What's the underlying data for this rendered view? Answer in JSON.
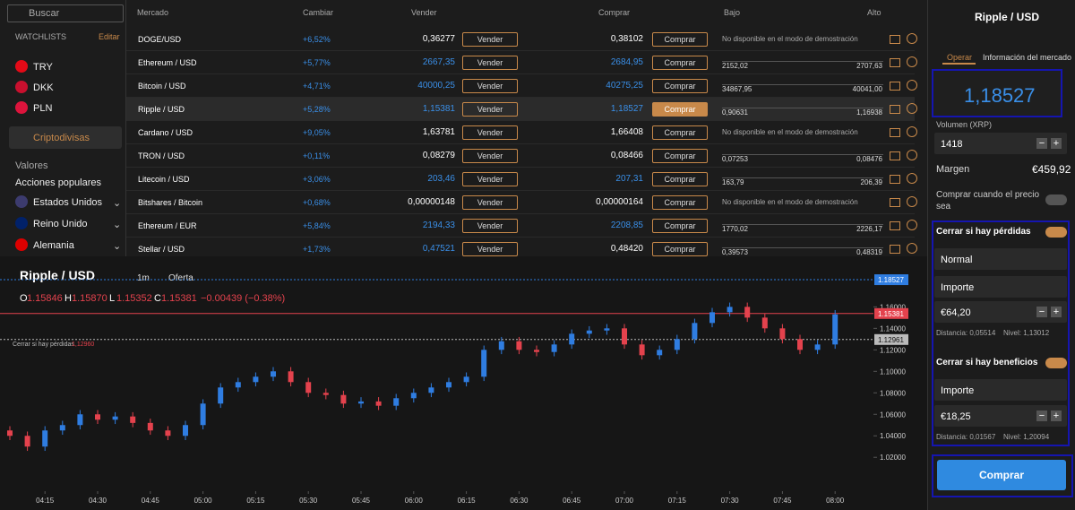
{
  "sidebar": {
    "search": "Buscar",
    "watchlists": "WATCHLISTS",
    "edit": "Editar",
    "currencies": [
      "TRY",
      "DKK",
      "PLN"
    ],
    "crypto": "Criptodivisas",
    "stocks": "Valores",
    "popular": "Acciones populares",
    "countries": [
      "Estados Unidos",
      "Reino Unido",
      "Alemania"
    ]
  },
  "table": {
    "headers": [
      "Mercado",
      "Cambiar",
      "Vender",
      "Comprar",
      "Bajo",
      "Alto"
    ],
    "sell_button": "Vender",
    "buy_button": "Comprar",
    "rows": [
      {
        "market": "DOGE/USD",
        "change": "+6,52%",
        "sell": "0,36277",
        "buy": "0,38102",
        "note": "No disponible en el modo de demostración"
      },
      {
        "market": "Ethereum / USD",
        "change": "+5,77%",
        "sell": "2667,35",
        "buy": "2684,95",
        "low": "2152,02",
        "high": "2707,63"
      },
      {
        "market": "Bitcoin / USD",
        "change": "+4,71%",
        "sell": "40000,25",
        "buy": "40275,25",
        "low": "34867,95",
        "high": "40041,00"
      },
      {
        "market": "Ripple / USD",
        "change": "+5,28%",
        "sell": "1,15381",
        "buy": "1,18527",
        "low": "0,90631",
        "high": "1,16938"
      },
      {
        "market": "Cardano / USD",
        "change": "+9,05%",
        "sell": "1,63781",
        "buy": "1,66408",
        "note": "No disponible en el modo de demostración"
      },
      {
        "market": "TRON / USD",
        "change": "+0,11%",
        "sell": "0,08279",
        "buy": "0,08466",
        "low": "0,07253",
        "high": "0,08476"
      },
      {
        "market": "Litecoin / USD",
        "change": "+3,06%",
        "sell": "203,46",
        "buy": "207,31",
        "low": "163,79",
        "high": "206,39"
      },
      {
        "market": "Bitshares / Bitcoin",
        "change": "+0,68%",
        "sell": "0,00000148",
        "buy": "0,00000164",
        "note": "No disponible en el modo de demostración"
      },
      {
        "market": "Ethereum / EUR",
        "change": "+5,84%",
        "sell": "2194,33",
        "buy": "2208,85",
        "low": "1770,02",
        "high": "2226,17"
      },
      {
        "market": "Stellar / USD",
        "change": "+1,73%",
        "sell": "0,47521",
        "buy": "0,48420",
        "low": "0,39573",
        "high": "0,48319"
      }
    ]
  },
  "chart_data": {
    "type": "candlestick",
    "title": "Ripple / USD",
    "interval": "1m",
    "price_type": "Oferta",
    "ohlc": [
      {
        "k": "O",
        "v": "1.15846"
      },
      {
        "k": "H",
        "v": "1.15870"
      },
      {
        "k": "L",
        "v": "1.15352"
      },
      {
        "k": "C",
        "v": "1.15381"
      }
    ],
    "change": "−0.00439 (−0.38%)",
    "up_color": "#2f7de1",
    "down_color": "#e4424d",
    "categories": [
      null,
      null,
      "04:15",
      null,
      null,
      "04:30",
      null,
      null,
      "04:45",
      null,
      null,
      "05:00",
      null,
      null,
      "05:15",
      null,
      null,
      "05:30",
      null,
      null,
      "05:45",
      null,
      null,
      "06:00",
      null,
      null,
      "06:15",
      null,
      null,
      "06:30",
      null,
      null,
      "06:45",
      null,
      null,
      "07:00",
      null,
      null,
      "07:15",
      null,
      null,
      "07:30",
      null,
      null,
      "07:45",
      null,
      null,
      "08:00"
    ],
    "candles": [
      [
        1.045,
        1.049,
        1.036,
        1.04
      ],
      [
        1.04,
        1.044,
        1.026,
        1.03
      ],
      [
        1.03,
        1.049,
        1.026,
        1.045
      ],
      [
        1.045,
        1.054,
        1.041,
        1.05
      ],
      [
        1.05,
        1.064,
        1.046,
        1.06
      ],
      [
        1.06,
        1.064,
        1.051,
        1.055
      ],
      [
        1.055,
        1.062,
        1.051,
        1.058
      ],
      [
        1.058,
        1.062,
        1.048,
        1.052
      ],
      [
        1.052,
        1.056,
        1.041,
        1.045
      ],
      [
        1.045,
        1.049,
        1.036,
        1.04
      ],
      [
        1.04,
        1.054,
        1.036,
        1.05
      ],
      [
        1.05,
        1.074,
        1.046,
        1.07
      ],
      [
        1.07,
        1.089,
        1.066,
        1.085
      ],
      [
        1.085,
        1.094,
        1.081,
        1.09
      ],
      [
        1.09,
        1.099,
        1.086,
        1.095
      ],
      [
        1.095,
        1.104,
        1.091,
        1.1
      ],
      [
        1.1,
        1.104,
        1.086,
        1.09
      ],
      [
        1.09,
        1.094,
        1.076,
        1.08
      ],
      [
        1.08,
        1.084,
        1.074,
        1.078
      ],
      [
        1.078,
        1.082,
        1.066,
        1.07
      ],
      [
        1.07,
        1.076,
        1.066,
        1.072
      ],
      [
        1.072,
        1.076,
        1.064,
        1.068
      ],
      [
        1.068,
        1.079,
        1.064,
        1.075
      ],
      [
        1.075,
        1.084,
        1.071,
        1.08
      ],
      [
        1.08,
        1.089,
        1.076,
        1.085
      ],
      [
        1.085,
        1.094,
        1.081,
        1.09
      ],
      [
        1.09,
        1.099,
        1.086,
        1.095
      ],
      [
        1.095,
        1.124,
        1.091,
        1.12
      ],
      [
        1.12,
        1.132,
        1.116,
        1.128
      ],
      [
        1.128,
        1.132,
        1.116,
        1.12
      ],
      [
        1.12,
        1.124,
        1.114,
        1.118
      ],
      [
        1.118,
        1.129,
        1.114,
        1.125
      ],
      [
        1.125,
        1.139,
        1.121,
        1.135
      ],
      [
        1.135,
        1.142,
        1.131,
        1.138
      ],
      [
        1.138,
        1.144,
        1.134,
        1.14
      ],
      [
        1.14,
        1.144,
        1.121,
        1.125
      ],
      [
        1.125,
        1.129,
        1.111,
        1.115
      ],
      [
        1.115,
        1.124,
        1.111,
        1.12
      ],
      [
        1.12,
        1.134,
        1.116,
        1.13
      ],
      [
        1.13,
        1.149,
        1.126,
        1.145
      ],
      [
        1.145,
        1.159,
        1.141,
        1.155
      ],
      [
        1.155,
        1.164,
        1.151,
        1.16
      ],
      [
        1.16,
        1.164,
        1.146,
        1.15
      ],
      [
        1.15,
        1.154,
        1.136,
        1.14
      ],
      [
        1.14,
        1.144,
        1.126,
        1.13
      ],
      [
        1.13,
        1.134,
        1.116,
        1.12
      ],
      [
        1.12,
        1.129,
        1.116,
        1.125
      ],
      [
        1.125,
        1.157,
        1.121,
        1.153
      ]
    ],
    "ylim": [
      0.991,
      1.202
    ],
    "yticks": [
      {
        "value": 1.02,
        "label": "1.02000"
      },
      {
        "value": 1.04,
        "label": "1.04000"
      },
      {
        "value": 1.06,
        "label": "1.06000"
      },
      {
        "value": 1.08,
        "label": "1.08000"
      },
      {
        "value": 1.1,
        "label": "1.10000"
      },
      {
        "value": 1.12,
        "label": "1.12000"
      },
      {
        "value": 1.14,
        "label": "1.14000"
      },
      {
        "value": 1.16,
        "label": "1.16000"
      }
    ],
    "price_lines": [
      {
        "value": 1.18527,
        "color": "#2f7de1"
      },
      {
        "value": 1.15381,
        "color": "#e4424d"
      },
      {
        "value": 1.12961,
        "color": "#bbbbbb"
      }
    ],
    "stop_label": "Cerrar si hay pérdidas",
    "stop_value": "1,12960"
  },
  "panel": {
    "title": "Ripple / USD",
    "tabs": [
      "Operar",
      "Información del mercado"
    ],
    "price": "1,18527",
    "volume_label": "Volumen (XRP)",
    "volume": "1418",
    "margin_label": "Margen",
    "margin": "€459,92",
    "buy_when": "Comprar cuando el precio sea",
    "stop_loss": {
      "title": "Cerrar si hay pérdidas",
      "type": "Normal",
      "mode": "Importe",
      "amount": "€64,20",
      "distance": "Distancia: 0,05514",
      "level": "Nivel: 1,13012"
    },
    "take_profit": {
      "title": "Cerrar si hay beneficios",
      "mode": "Importe",
      "amount": "€18,25",
      "distance": "Distancia: 0,01567",
      "level": "Nivel: 1,20094"
    },
    "button": "Comprar"
  }
}
